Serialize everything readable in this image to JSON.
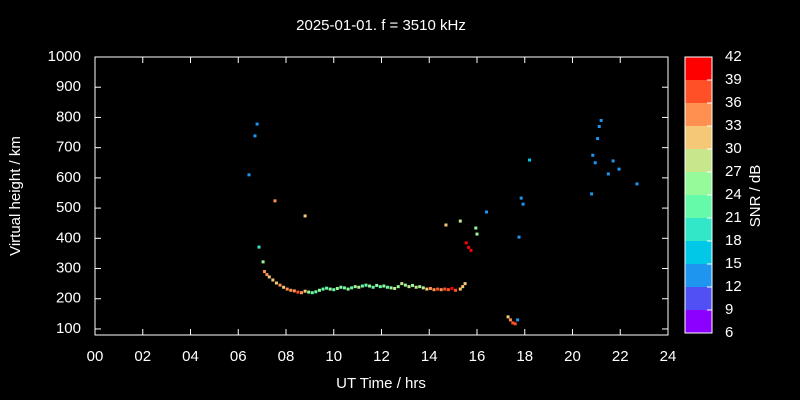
{
  "chart_data": {
    "type": "scatter",
    "title": "2025-01-01. f = 3510 kHz",
    "x_label": "UT Time / hrs",
    "y_label": "Virtual height / km",
    "xlim": [
      0,
      24
    ],
    "ylim": [
      80,
      1000
    ],
    "xticks": [
      {
        "value": 0,
        "label": "00"
      },
      {
        "value": 2,
        "label": "02"
      },
      {
        "value": 4,
        "label": "04"
      },
      {
        "value": 6,
        "label": "06"
      },
      {
        "value": 8,
        "label": "08"
      },
      10,
      12,
      14,
      16,
      18,
      20,
      22,
      24
    ],
    "yticks": [
      100,
      200,
      300,
      400,
      500,
      600,
      700,
      800,
      900,
      1000
    ],
    "colorbar": {
      "label": "SNR / dB",
      "lim": [
        6,
        42
      ],
      "ticks": [
        6,
        9,
        12,
        15,
        18,
        21,
        24,
        27,
        30,
        33,
        36,
        39,
        42
      ],
      "colors": [
        "#8c00ff",
        "#5050f5",
        "#1e96f0",
        "#00c8e6",
        "#32e6c8",
        "#64faaa",
        "#96fa9a",
        "#c8e68c",
        "#f5c878",
        "#ff9050",
        "#ff5028",
        "#ff0000"
      ]
    },
    "series": [
      {
        "name": "SNR / dB",
        "x": [
          6.45,
          6.7,
          6.79,
          6.87,
          7.04,
          7.1,
          7.2,
          7.3,
          7.45,
          7.54,
          7.6,
          7.75,
          7.9,
          8.05,
          8.2,
          8.35,
          8.5,
          8.65,
          8.8,
          8.8,
          8.95,
          9.1,
          9.25,
          9.4,
          9.55,
          9.7,
          9.85,
          10.0,
          10.15,
          10.3,
          10.45,
          10.6,
          10.75,
          10.9,
          11.05,
          11.2,
          11.35,
          11.5,
          11.65,
          11.8,
          11.95,
          12.1,
          12.25,
          12.4,
          12.55,
          12.7,
          12.85,
          13.0,
          13.15,
          13.3,
          13.45,
          13.6,
          13.75,
          13.9,
          14.05,
          14.2,
          14.35,
          14.5,
          14.65,
          14.7,
          14.8,
          14.95,
          15.1,
          15.3,
          15.3,
          15.4,
          15.5,
          15.55,
          15.65,
          15.75,
          15.95,
          16.0,
          16.4,
          17.3,
          17.4,
          17.5,
          17.6,
          17.7,
          17.76,
          17.85,
          17.93,
          18.2,
          20.8,
          20.85,
          20.95,
          21.05,
          21.12,
          21.2,
          21.5,
          21.7,
          21.95,
          22.7
        ],
        "y": [
          610,
          739,
          778,
          371,
          322,
          290,
          280,
          272,
          262,
          524,
          252,
          245,
          238,
          232,
          228,
          226,
          222,
          220,
          474,
          225,
          222,
          220,
          223,
          228,
          232,
          235,
          232,
          230,
          234,
          238,
          236,
          232,
          236,
          240,
          238,
          242,
          245,
          242,
          238,
          244,
          240,
          242,
          238,
          236,
          234,
          240,
          250,
          245,
          240,
          244,
          238,
          240,
          236,
          232,
          234,
          230,
          232,
          230,
          232,
          444,
          230,
          234,
          228,
          232,
          457,
          240,
          250,
          385,
          370,
          360,
          434,
          414,
          487,
          140,
          130,
          120,
          117,
          130,
          404,
          533,
          513,
          659,
          547,
          675,
          650,
          730,
          770,
          790,
          613,
          656,
          629,
          580
        ],
        "snr": [
          12,
          12,
          12,
          18,
          24,
          33,
          33,
          30,
          30,
          33,
          30,
          33,
          30,
          33,
          33,
          33,
          36,
          33,
          30,
          30,
          24,
          21,
          21,
          24,
          21,
          21,
          24,
          21,
          24,
          24,
          21,
          24,
          21,
          24,
          27,
          21,
          21,
          24,
          21,
          24,
          21,
          24,
          21,
          24,
          27,
          24,
          27,
          24,
          27,
          24,
          27,
          24,
          27,
          30,
          33,
          33,
          36,
          33,
          36,
          30,
          36,
          39,
          36,
          30,
          27,
          30,
          30,
          39,
          39,
          39,
          24,
          24,
          12,
          30,
          33,
          36,
          36,
          12,
          12,
          12,
          12,
          15,
          12,
          12,
          12,
          12,
          12,
          12,
          12,
          12,
          12,
          12
        ]
      }
    ]
  }
}
